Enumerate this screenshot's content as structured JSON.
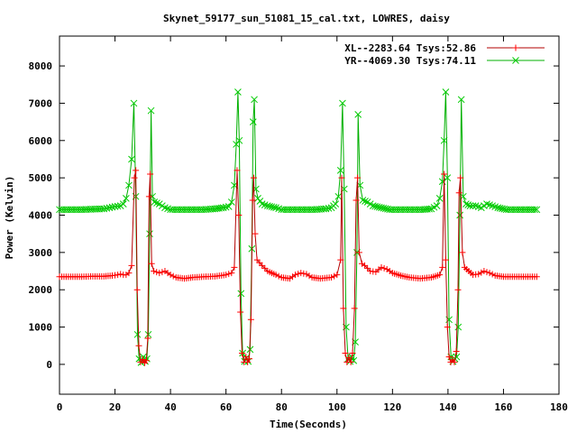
{
  "chart_data": {
    "type": "line",
    "title": "Skynet_59177_sun_51081_15_cal.txt, LOWRES, daisy",
    "xlabel": "Time(Seconds)",
    "ylabel": "Power (Kelvin)",
    "xlim": [
      0,
      180
    ],
    "ylim": [
      -800,
      8800
    ],
    "xticks": [
      "0",
      "20",
      "40",
      "60",
      "80",
      "100",
      "120",
      "140",
      "160",
      "180"
    ],
    "yticks": [
      "0",
      "1000",
      "2000",
      "3000",
      "4000",
      "5000",
      "6000",
      "7000",
      "8000"
    ],
    "grid": false,
    "legend_position": "top-right",
    "series": [
      {
        "name": "XL--2283.64 Tsys:52.86",
        "color": "#ff0000",
        "line_color": "#b30000",
        "marker": "plus",
        "points": [
          [
            0,
            2350
          ],
          [
            4,
            2350
          ],
          [
            8,
            2350
          ],
          [
            12,
            2360
          ],
          [
            16,
            2360
          ],
          [
            19,
            2380
          ],
          [
            21,
            2400
          ],
          [
            22,
            2420
          ],
          [
            23,
            2400
          ],
          [
            24,
            2400
          ],
          [
            25,
            2450
          ],
          [
            26,
            2650
          ],
          [
            27,
            5000
          ],
          [
            27.5,
            5200
          ],
          [
            28,
            2000
          ],
          [
            28.6,
            500
          ],
          [
            29.2,
            60
          ],
          [
            30,
            130
          ],
          [
            30.7,
            40
          ],
          [
            31.3,
            100
          ],
          [
            31.8,
            700
          ],
          [
            32.3,
            4500
          ],
          [
            32.7,
            5100
          ],
          [
            33.2,
            2700
          ],
          [
            34,
            2500
          ],
          [
            36,
            2450
          ],
          [
            38,
            2500
          ],
          [
            40,
            2400
          ],
          [
            42,
            2330
          ],
          [
            45,
            2300
          ],
          [
            48,
            2330
          ],
          [
            52,
            2350
          ],
          [
            56,
            2360
          ],
          [
            60,
            2400
          ],
          [
            62,
            2450
          ],
          [
            63,
            2600
          ],
          [
            64,
            5200
          ],
          [
            64.6,
            4000
          ],
          [
            65.2,
            1400
          ],
          [
            65.8,
            300
          ],
          [
            66.5,
            60
          ],
          [
            67.2,
            200
          ],
          [
            67.8,
            60
          ],
          [
            68.4,
            150
          ],
          [
            69,
            1200
          ],
          [
            69.6,
            4400
          ],
          [
            70,
            5000
          ],
          [
            70.5,
            3500
          ],
          [
            71.2,
            2800
          ],
          [
            73,
            2650
          ],
          [
            75,
            2500
          ],
          [
            78,
            2400
          ],
          [
            80,
            2330
          ],
          [
            83,
            2300
          ],
          [
            85,
            2400
          ],
          [
            87,
            2450
          ],
          [
            89,
            2420
          ],
          [
            91,
            2330
          ],
          [
            94,
            2300
          ],
          [
            98,
            2330
          ],
          [
            100,
            2400
          ],
          [
            101.3,
            2800
          ],
          [
            101.7,
            5000
          ],
          [
            102.3,
            1500
          ],
          [
            103,
            300
          ],
          [
            103.6,
            60
          ],
          [
            104.3,
            180
          ],
          [
            105,
            60
          ],
          [
            105.6,
            300
          ],
          [
            106.3,
            1500
          ],
          [
            106.9,
            4400
          ],
          [
            107.4,
            5000
          ],
          [
            108,
            3000
          ],
          [
            109,
            2700
          ],
          [
            110,
            2650
          ],
          [
            112,
            2500
          ],
          [
            114,
            2480
          ],
          [
            116,
            2600
          ],
          [
            118,
            2550
          ],
          [
            120,
            2450
          ],
          [
            123,
            2380
          ],
          [
            126,
            2330
          ],
          [
            130,
            2300
          ],
          [
            134,
            2330
          ],
          [
            137,
            2400
          ],
          [
            138,
            2600
          ],
          [
            138.6,
            5100
          ],
          [
            139.2,
            2800
          ],
          [
            139.8,
            1000
          ],
          [
            140.4,
            200
          ],
          [
            141,
            60
          ],
          [
            141.7,
            120
          ],
          [
            142.3,
            60
          ],
          [
            143,
            350
          ],
          [
            143.6,
            2000
          ],
          [
            144,
            4600
          ],
          [
            144.5,
            5000
          ],
          [
            145.2,
            3000
          ],
          [
            146,
            2600
          ],
          [
            147.5,
            2500
          ],
          [
            149,
            2400
          ],
          [
            151,
            2420
          ],
          [
            153,
            2500
          ],
          [
            155,
            2450
          ],
          [
            157,
            2380
          ],
          [
            160,
            2350
          ],
          [
            164,
            2350
          ],
          [
            168,
            2350
          ],
          [
            172,
            2350
          ]
        ]
      },
      {
        "name": "YR--4069.30 Tsys:74.11",
        "color": "#00cc00",
        "line_color": "#00b000",
        "marker": "cross",
        "points": [
          [
            0,
            4150
          ],
          [
            4,
            4150
          ],
          [
            8,
            4150
          ],
          [
            12,
            4160
          ],
          [
            16,
            4170
          ],
          [
            18,
            4200
          ],
          [
            20,
            4230
          ],
          [
            22,
            4250
          ],
          [
            23,
            4300
          ],
          [
            24,
            4450
          ],
          [
            25,
            4800
          ],
          [
            26,
            5500
          ],
          [
            26.8,
            7000
          ],
          [
            27.5,
            4500
          ],
          [
            28.1,
            800
          ],
          [
            28.7,
            150
          ],
          [
            29.4,
            50
          ],
          [
            30.2,
            200
          ],
          [
            30.9,
            80
          ],
          [
            31.5,
            150
          ],
          [
            32,
            800
          ],
          [
            32.5,
            3500
          ],
          [
            33,
            6800
          ],
          [
            33.5,
            4500
          ],
          [
            34.2,
            4350
          ],
          [
            36,
            4300
          ],
          [
            38,
            4200
          ],
          [
            40,
            4150
          ],
          [
            44,
            4150
          ],
          [
            48,
            4150
          ],
          [
            52,
            4150
          ],
          [
            56,
            4170
          ],
          [
            59,
            4200
          ],
          [
            61,
            4230
          ],
          [
            62,
            4350
          ],
          [
            63,
            4800
          ],
          [
            63.7,
            5900
          ],
          [
            64.3,
            7300
          ],
          [
            64.8,
            6000
          ],
          [
            65.4,
            1900
          ],
          [
            66,
            300
          ],
          [
            66.7,
            80
          ],
          [
            67.4,
            180
          ],
          [
            68,
            80
          ],
          [
            68.7,
            400
          ],
          [
            69.3,
            3100
          ],
          [
            69.8,
            6500
          ],
          [
            70.2,
            7100
          ],
          [
            70.8,
            4700
          ],
          [
            71.5,
            4450
          ],
          [
            73,
            4300
          ],
          [
            75,
            4250
          ],
          [
            78,
            4200
          ],
          [
            80,
            4150
          ],
          [
            84,
            4150
          ],
          [
            88,
            4150
          ],
          [
            92,
            4150
          ],
          [
            96,
            4170
          ],
          [
            98,
            4200
          ],
          [
            99.5,
            4300
          ],
          [
            100.5,
            4500
          ],
          [
            101.3,
            5200
          ],
          [
            102,
            7000
          ],
          [
            102.6,
            4700
          ],
          [
            103.3,
            1000
          ],
          [
            104,
            150
          ],
          [
            104.7,
            80
          ],
          [
            105.4,
            200
          ],
          [
            106,
            100
          ],
          [
            106.6,
            600
          ],
          [
            107.2,
            3000
          ],
          [
            107.6,
            6700
          ],
          [
            108.3,
            4800
          ],
          [
            109.3,
            4400
          ],
          [
            111,
            4350
          ],
          [
            113,
            4250
          ],
          [
            116,
            4200
          ],
          [
            119,
            4150
          ],
          [
            123,
            4150
          ],
          [
            127,
            4150
          ],
          [
            131,
            4150
          ],
          [
            134,
            4170
          ],
          [
            136,
            4250
          ],
          [
            137,
            4450
          ],
          [
            138,
            4900
          ],
          [
            138.6,
            6000
          ],
          [
            139.2,
            7300
          ],
          [
            139.8,
            5000
          ],
          [
            140.4,
            1200
          ],
          [
            141.1,
            200
          ],
          [
            141.8,
            80
          ],
          [
            142.5,
            150
          ],
          [
            143.1,
            200
          ],
          [
            143.7,
            1000
          ],
          [
            144.3,
            4000
          ],
          [
            144.8,
            7100
          ],
          [
            145.5,
            4500
          ],
          [
            146.5,
            4300
          ],
          [
            148,
            4250
          ],
          [
            150,
            4250
          ],
          [
            152,
            4200
          ],
          [
            154,
            4300
          ],
          [
            156,
            4250
          ],
          [
            158,
            4200
          ],
          [
            161,
            4150
          ],
          [
            165,
            4150
          ],
          [
            169,
            4150
          ],
          [
            172,
            4150
          ]
        ]
      }
    ]
  }
}
